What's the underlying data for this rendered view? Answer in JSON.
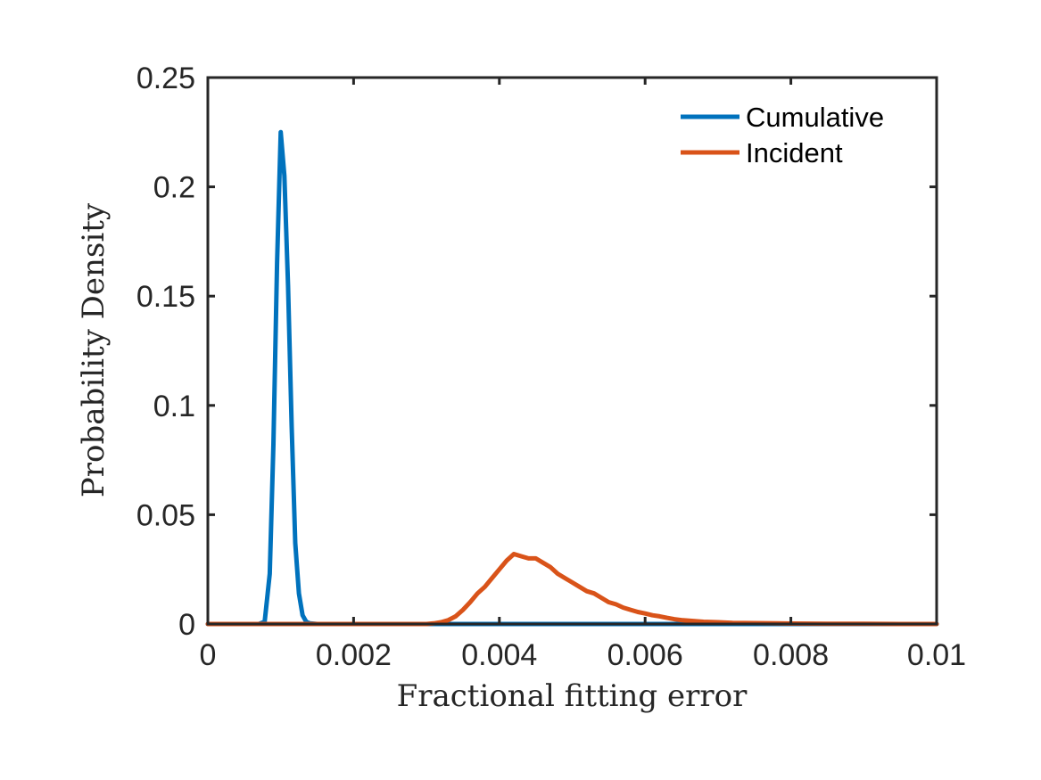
{
  "chart_data": {
    "type": "line",
    "xlabel": "Fractional fitting error",
    "ylabel": "Probability Density",
    "xlim": [
      0,
      0.01
    ],
    "ylim": [
      0,
      0.25
    ],
    "x_ticks": [
      0,
      0.002,
      0.004,
      0.006,
      0.008,
      0.01
    ],
    "x_tick_labels": [
      "0",
      "0.002",
      "0.004",
      "0.006",
      "0.008",
      "0.01"
    ],
    "y_ticks": [
      0,
      0.05,
      0.1,
      0.15,
      0.2,
      0.25
    ],
    "y_tick_labels": [
      "0",
      "0.05",
      "0.1",
      "0.15",
      "0.2",
      "0.25"
    ],
    "grid": false,
    "legend_position": "top-right",
    "series": [
      {
        "name": "Cumulative",
        "color": "#0072BD",
        "x": [
          0,
          0.0007,
          0.00078,
          0.00085,
          0.0009,
          0.00095,
          0.001,
          0.00105,
          0.0011,
          0.00115,
          0.0012,
          0.00125,
          0.0013,
          0.00135,
          0.0014,
          0.0015,
          0.002,
          0.004,
          0.006,
          0.008,
          0.01
        ],
        "y": [
          0,
          0,
          0.001,
          0.023,
          0.082,
          0.165,
          0.225,
          0.205,
          0.155,
          0.09,
          0.037,
          0.014,
          0.004,
          0.001,
          0.0003,
          0,
          0,
          0,
          0,
          0,
          0
        ]
      },
      {
        "name": "Incident",
        "color": "#D95319",
        "x": [
          0,
          0.003,
          0.0031,
          0.0032,
          0.0033,
          0.0034,
          0.0035,
          0.0036,
          0.0037,
          0.0038,
          0.0039,
          0.004,
          0.0041,
          0.0042,
          0.0043,
          0.0044,
          0.0045,
          0.0046,
          0.0047,
          0.0048,
          0.0049,
          0.005,
          0.0051,
          0.0052,
          0.0053,
          0.0054,
          0.0055,
          0.0056,
          0.0057,
          0.0058,
          0.0059,
          0.006,
          0.0061,
          0.0062,
          0.0063,
          0.0064,
          0.0065,
          0.0066,
          0.0068,
          0.007,
          0.0072,
          0.0075,
          0.0078,
          0.008,
          0.0085,
          0.009,
          0.0095,
          0.01
        ],
        "y": [
          0,
          0,
          0.0003,
          0.0008,
          0.0018,
          0.0035,
          0.0065,
          0.01,
          0.014,
          0.017,
          0.021,
          0.025,
          0.029,
          0.032,
          0.031,
          0.03,
          0.03,
          0.028,
          0.026,
          0.023,
          0.021,
          0.019,
          0.017,
          0.015,
          0.014,
          0.012,
          0.01,
          0.009,
          0.0075,
          0.0065,
          0.0055,
          0.0048,
          0.004,
          0.0035,
          0.0028,
          0.0022,
          0.0018,
          0.0015,
          0.001,
          0.0008,
          0.0005,
          0.0004,
          0.0003,
          0.0002,
          0.0001,
          0.0001,
          0,
          0
        ]
      }
    ]
  }
}
